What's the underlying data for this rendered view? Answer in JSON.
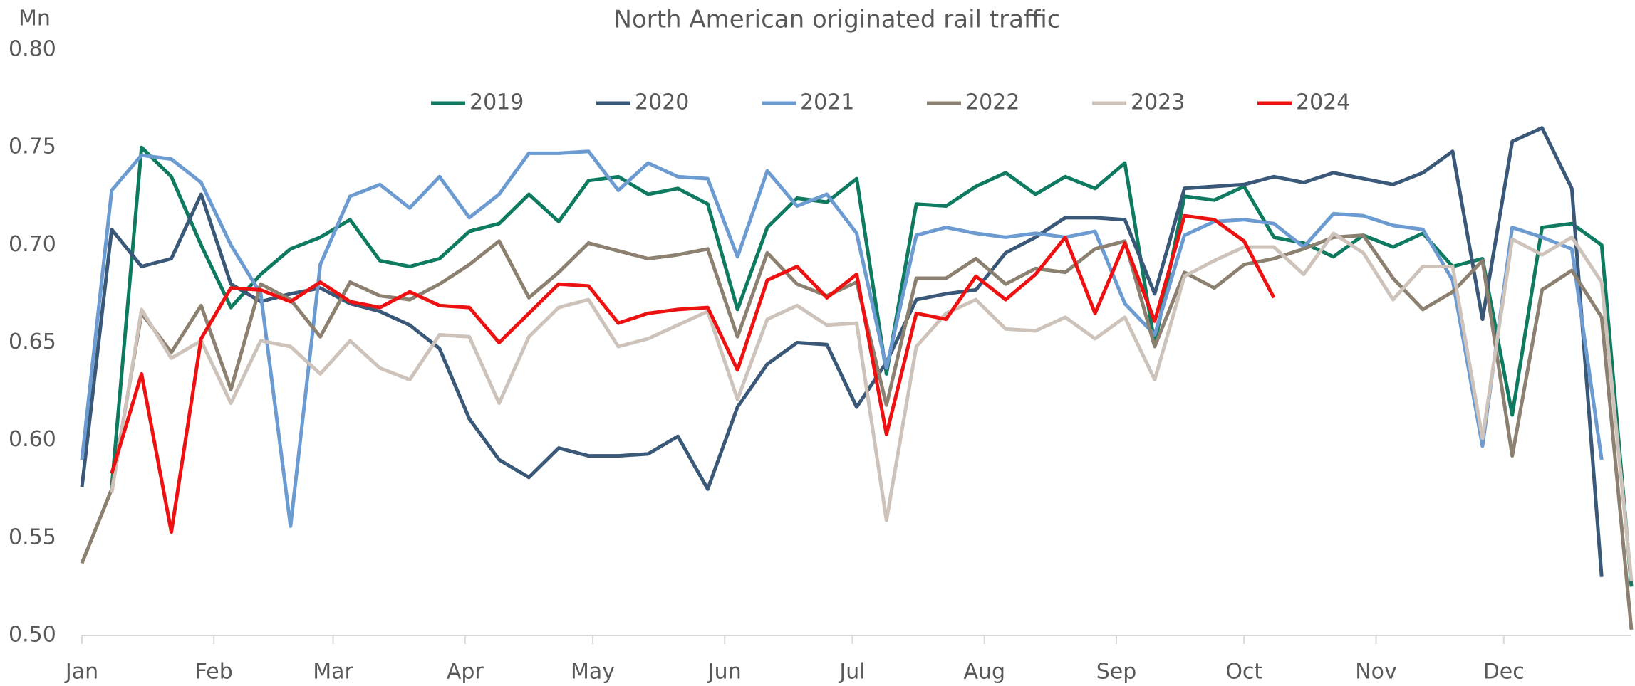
{
  "chart_data": {
    "type": "line",
    "title": "North American originated rail traffic",
    "ylabel": "Mn",
    "x": [
      1,
      8,
      15,
      22,
      29,
      36,
      43,
      50,
      57,
      64,
      71,
      78,
      85,
      92,
      99,
      106,
      113,
      120,
      127,
      134,
      141,
      148,
      155,
      162,
      169,
      176,
      183,
      190,
      197,
      204,
      211,
      218,
      225,
      232,
      239,
      246,
      253,
      260,
      267,
      274,
      281,
      288,
      295,
      302,
      309,
      316,
      323,
      330,
      337,
      344,
      351,
      358,
      365
    ],
    "xlim": [
      1,
      365
    ],
    "xticks": [
      {
        "value": 1,
        "label": "Jan"
      },
      {
        "value": 32,
        "label": "Feb"
      },
      {
        "value": 60,
        "label": "Mar"
      },
      {
        "value": 91,
        "label": "Apr"
      },
      {
        "value": 121,
        "label": "May"
      },
      {
        "value": 152,
        "label": "Jun"
      },
      {
        "value": 182,
        "label": "Jul"
      },
      {
        "value": 213,
        "label": "Aug"
      },
      {
        "value": 244,
        "label": "Sep"
      },
      {
        "value": 274,
        "label": "Oct"
      },
      {
        "value": 305,
        "label": "Nov"
      },
      {
        "value": 335,
        "label": "Dec"
      }
    ],
    "ylim": [
      0.5,
      0.8
    ],
    "yticks": [
      {
        "value": 0.5,
        "label": "0.50"
      },
      {
        "value": 0.55,
        "label": "0.55"
      },
      {
        "value": 0.6,
        "label": "0.60"
      },
      {
        "value": 0.65,
        "label": "0.65"
      },
      {
        "value": 0.7,
        "label": "0.70"
      },
      {
        "value": 0.75,
        "label": "0.75"
      },
      {
        "value": 0.8,
        "label": "0.80"
      }
    ],
    "grid": false,
    "legend": "top",
    "series": [
      {
        "name": "2019",
        "color": "#0e7a5f",
        "values": [
          null,
          0.576,
          0.75,
          0.735,
          0.7,
          0.668,
          0.685,
          0.698,
          0.704,
          0.713,
          0.692,
          0.689,
          0.693,
          0.707,
          0.711,
          0.726,
          0.712,
          0.733,
          0.735,
          0.726,
          0.729,
          0.721,
          0.667,
          0.709,
          0.724,
          0.722,
          0.734,
          0.634,
          0.721,
          0.72,
          0.73,
          0.737,
          0.726,
          0.735,
          0.729,
          0.742,
          0.649,
          0.725,
          0.723,
          0.73,
          0.704,
          0.701,
          0.694,
          0.705,
          0.699,
          0.706,
          0.689,
          0.693,
          0.613,
          0.709,
          0.711,
          0.7,
          0.525
        ]
      },
      {
        "name": "2020",
        "color": "#3a5878",
        "values": [
          0.576,
          0.708,
          0.689,
          0.693,
          0.726,
          0.68,
          0.671,
          0.675,
          0.678,
          0.67,
          0.666,
          0.659,
          0.647,
          0.611,
          0.59,
          0.581,
          0.596,
          0.592,
          0.592,
          0.593,
          0.602,
          0.575,
          0.617,
          0.639,
          0.65,
          0.649,
          0.617,
          0.64,
          0.672,
          0.675,
          0.677,
          0.696,
          0.704,
          0.714,
          0.714,
          0.713,
          0.675,
          0.729,
          0.73,
          0.731,
          0.735,
          0.732,
          0.737,
          0.734,
          0.731,
          0.737,
          0.748,
          0.662,
          0.753,
          0.76,
          0.729,
          0.53,
          null
        ]
      },
      {
        "name": "2021",
        "color": "#6b9bd1",
        "values": [
          0.59,
          0.728,
          0.746,
          0.744,
          0.732,
          0.7,
          0.675,
          0.556,
          0.69,
          0.725,
          0.731,
          0.719,
          0.735,
          0.714,
          0.726,
          0.747,
          0.747,
          0.748,
          0.728,
          0.742,
          0.735,
          0.734,
          0.694,
          0.738,
          0.72,
          0.726,
          0.706,
          0.637,
          0.705,
          0.709,
          0.706,
          0.704,
          0.706,
          0.704,
          0.707,
          0.67,
          0.654,
          0.705,
          0.712,
          0.713,
          0.711,
          0.699,
          0.716,
          0.715,
          0.71,
          0.708,
          0.682,
          0.597,
          0.709,
          0.704,
          0.698,
          0.59,
          null
        ]
      },
      {
        "name": "2022",
        "color": "#8c8070",
        "values": [
          0.537,
          0.575,
          0.665,
          0.645,
          0.669,
          0.626,
          0.68,
          0.672,
          0.653,
          0.681,
          0.674,
          0.672,
          0.68,
          0.69,
          0.702,
          0.673,
          0.686,
          0.701,
          0.697,
          0.693,
          0.695,
          0.698,
          0.653,
          0.696,
          0.68,
          0.674,
          0.681,
          0.618,
          0.683,
          0.683,
          0.693,
          0.68,
          0.688,
          0.686,
          0.698,
          0.702,
          0.648,
          0.686,
          0.678,
          0.69,
          0.693,
          0.698,
          0.704,
          0.705,
          0.683,
          0.667,
          0.676,
          0.692,
          0.592,
          0.677,
          0.687,
          0.663,
          0.503
        ]
      },
      {
        "name": "2023",
        "color": "#cdc3bb",
        "values": [
          null,
          0.573,
          0.667,
          0.642,
          0.651,
          0.619,
          0.651,
          0.648,
          0.634,
          0.651,
          0.637,
          0.631,
          0.654,
          0.653,
          0.619,
          0.653,
          0.668,
          0.672,
          0.648,
          0.652,
          0.659,
          0.666,
          0.621,
          0.662,
          0.669,
          0.659,
          0.66,
          0.559,
          0.648,
          0.665,
          0.672,
          0.657,
          0.656,
          0.663,
          0.652,
          0.663,
          0.631,
          0.684,
          0.692,
          0.699,
          0.699,
          0.685,
          0.706,
          0.696,
          0.672,
          0.689,
          0.689,
          0.601,
          0.703,
          0.695,
          0.704,
          0.681,
          0.528
        ]
      },
      {
        "name": "2024",
        "color": "#ee1111",
        "values": [
          null,
          0.583,
          0.634,
          0.553,
          0.652,
          0.678,
          0.677,
          0.671,
          0.681,
          0.671,
          0.668,
          0.676,
          0.669,
          0.668,
          0.65,
          0.665,
          0.68,
          0.679,
          0.66,
          0.665,
          0.667,
          0.668,
          0.636,
          0.682,
          0.689,
          0.673,
          0.685,
          0.603,
          0.665,
          0.662,
          0.684,
          0.672,
          0.685,
          0.704,
          0.665,
          0.701,
          0.661,
          0.715,
          0.713,
          0.702,
          0.673,
          null,
          null,
          null,
          null,
          null,
          null,
          null,
          null,
          null,
          null,
          null,
          null
        ]
      }
    ]
  }
}
